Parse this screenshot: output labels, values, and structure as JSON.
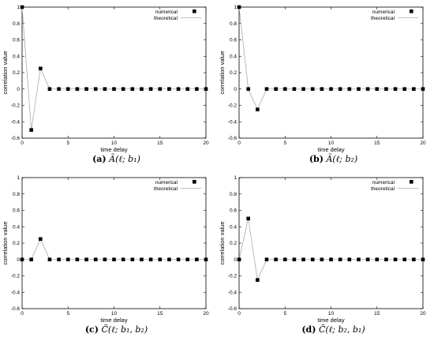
{
  "chart_data": [
    {
      "type": "scatter",
      "caption": {
        "label": "(a)",
        "math": "Ã(ℓ; b₁)"
      },
      "xlabel": "time delay",
      "ylabel": "correlation value",
      "xlim": [
        0,
        20
      ],
      "ylim": [
        -0.6,
        1
      ],
      "xticks": [
        0,
        5,
        10,
        15,
        20
      ],
      "yticks": [
        -0.6,
        -0.4,
        -0.2,
        0,
        0.2,
        0.4,
        0.6,
        0.8,
        1
      ],
      "legend_position": "top-right",
      "series": [
        {
          "name": "numerical",
          "style": "markers",
          "x": [
            0,
            1,
            2,
            3,
            4,
            5,
            6,
            7,
            8,
            9,
            10,
            11,
            12,
            13,
            14,
            15,
            16,
            17,
            18,
            19,
            20
          ],
          "y": [
            1,
            -0.5,
            0.25,
            0,
            0,
            0,
            0,
            0,
            0,
            0,
            0,
            0,
            0,
            0,
            0,
            0,
            0,
            0,
            0,
            0,
            0
          ]
        },
        {
          "name": "theoretical",
          "style": "line",
          "x": [
            0,
            1,
            2,
            3,
            4,
            5,
            6,
            7,
            8,
            9,
            10,
            11,
            12,
            13,
            14,
            15,
            16,
            17,
            18,
            19,
            20
          ],
          "y": [
            1,
            -0.5,
            0.25,
            0,
            0,
            0,
            0,
            0,
            0,
            0,
            0,
            0,
            0,
            0,
            0,
            0,
            0,
            0,
            0,
            0,
            0
          ]
        }
      ]
    },
    {
      "type": "scatter",
      "caption": {
        "label": "(b)",
        "math": "Ã(ℓ; b₂)"
      },
      "xlabel": "time delay",
      "ylabel": "correlation value",
      "xlim": [
        0,
        20
      ],
      "ylim": [
        -0.6,
        1
      ],
      "xticks": [
        0,
        5,
        10,
        15,
        20
      ],
      "yticks": [
        -0.6,
        -0.4,
        -0.2,
        0,
        0.2,
        0.4,
        0.6,
        0.8,
        1
      ],
      "legend_position": "top-right",
      "series": [
        {
          "name": "numerical",
          "style": "markers",
          "x": [
            0,
            1,
            2,
            3,
            4,
            5,
            6,
            7,
            8,
            9,
            10,
            11,
            12,
            13,
            14,
            15,
            16,
            17,
            18,
            19,
            20
          ],
          "y": [
            1,
            0,
            -0.25,
            0,
            0,
            0,
            0,
            0,
            0,
            0,
            0,
            0,
            0,
            0,
            0,
            0,
            0,
            0,
            0,
            0,
            0
          ]
        },
        {
          "name": "theoretical",
          "style": "line",
          "x": [
            0,
            1,
            2,
            3,
            4,
            5,
            6,
            7,
            8,
            9,
            10,
            11,
            12,
            13,
            14,
            15,
            16,
            17,
            18,
            19,
            20
          ],
          "y": [
            1,
            0,
            -0.25,
            0,
            0,
            0,
            0,
            0,
            0,
            0,
            0,
            0,
            0,
            0,
            0,
            0,
            0,
            0,
            0,
            0,
            0
          ]
        }
      ]
    },
    {
      "type": "scatter",
      "caption": {
        "label": "(c)",
        "math": "C̃(ℓ; b₁, b₂)"
      },
      "xlabel": "time delay",
      "ylabel": "correlation value",
      "xlim": [
        0,
        20
      ],
      "ylim": [
        -0.6,
        1
      ],
      "xticks": [
        0,
        5,
        10,
        15,
        20
      ],
      "yticks": [
        -0.6,
        -0.4,
        -0.2,
        0,
        0.2,
        0.4,
        0.6,
        0.8,
        1
      ],
      "legend_position": "top-right",
      "series": [
        {
          "name": "numerical",
          "style": "markers",
          "x": [
            0,
            1,
            2,
            3,
            4,
            5,
            6,
            7,
            8,
            9,
            10,
            11,
            12,
            13,
            14,
            15,
            16,
            17,
            18,
            19,
            20
          ],
          "y": [
            0,
            0,
            0.25,
            0,
            0,
            0,
            0,
            0,
            0,
            0,
            0,
            0,
            0,
            0,
            0,
            0,
            0,
            0,
            0,
            0,
            0
          ]
        },
        {
          "name": "theoretical",
          "style": "line",
          "x": [
            0,
            1,
            2,
            3,
            4,
            5,
            6,
            7,
            8,
            9,
            10,
            11,
            12,
            13,
            14,
            15,
            16,
            17,
            18,
            19,
            20
          ],
          "y": [
            0,
            0,
            0.25,
            0,
            0,
            0,
            0,
            0,
            0,
            0,
            0,
            0,
            0,
            0,
            0,
            0,
            0,
            0,
            0,
            0,
            0
          ]
        }
      ]
    },
    {
      "type": "scatter",
      "caption": {
        "label": "(d)",
        "math": "C̃(ℓ; b₂, b₁)"
      },
      "xlabel": "time delay",
      "ylabel": "correlation value",
      "xlim": [
        0,
        20
      ],
      "ylim": [
        -0.6,
        1
      ],
      "xticks": [
        0,
        5,
        10,
        15,
        20
      ],
      "yticks": [
        -0.6,
        -0.4,
        -0.2,
        0,
        0.2,
        0.4,
        0.6,
        0.8,
        1
      ],
      "legend_position": "top-right",
      "series": [
        {
          "name": "numerical",
          "style": "markers",
          "x": [
            0,
            1,
            2,
            3,
            4,
            5,
            6,
            7,
            8,
            9,
            10,
            11,
            12,
            13,
            14,
            15,
            16,
            17,
            18,
            19,
            20
          ],
          "y": [
            0,
            0.5,
            -0.25,
            0,
            0,
            0,
            0,
            0,
            0,
            0,
            0,
            0,
            0,
            0,
            0,
            0,
            0,
            0,
            0,
            0,
            0
          ]
        },
        {
          "name": "theoretical",
          "style": "line",
          "x": [
            0,
            1,
            2,
            3,
            4,
            5,
            6,
            7,
            8,
            9,
            10,
            11,
            12,
            13,
            14,
            15,
            16,
            17,
            18,
            19,
            20
          ],
          "y": [
            0,
            0.5,
            -0.25,
            0,
            0,
            0,
            0,
            0,
            0,
            0,
            0,
            0,
            0,
            0,
            0,
            0,
            0,
            0,
            0,
            0,
            0
          ]
        }
      ]
    }
  ],
  "colors": {
    "marker": "#000000",
    "theory_line": "#aaaaaa",
    "axis": "#000000"
  }
}
